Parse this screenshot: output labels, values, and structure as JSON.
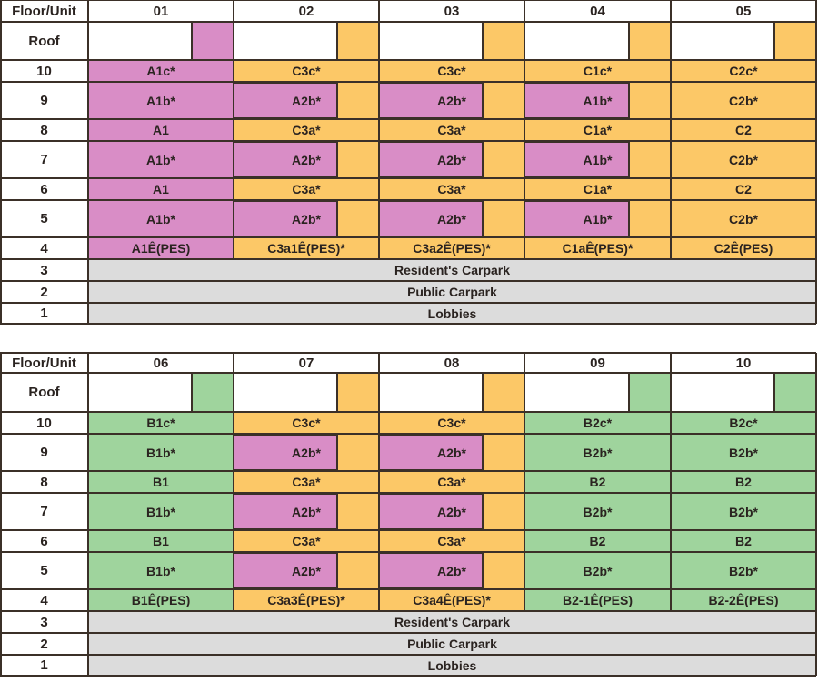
{
  "colors": {
    "pink": "#d98dc6",
    "orange": "#fcc867",
    "green": "#9fd49d",
    "gray": "#dcdcdc",
    "white": "#ffffff",
    "border": "#3b3028"
  },
  "floors": [
    "Roof",
    "10",
    "9",
    "8",
    "7",
    "6",
    "5",
    "4",
    "3",
    "2",
    "1"
  ],
  "tables": [
    {
      "header_label": "Floor/Unit",
      "units": [
        {
          "id": "01",
          "color": "pink",
          "cells": [
            {
              "label": "A1c*"
            },
            {
              "label": "A1b*"
            },
            {
              "label": "A1"
            },
            {
              "label": "A1b*"
            },
            {
              "label": "A1"
            },
            {
              "label": "A1b*"
            },
            {
              "label": "A1Ê(PES)"
            }
          ]
        },
        {
          "id": "02",
          "color": "orange",
          "cells": [
            {
              "label": "C3c*"
            },
            {
              "label": "A2b*",
              "inner": "pink"
            },
            {
              "label": "C3a*"
            },
            {
              "label": "A2b*",
              "inner": "pink"
            },
            {
              "label": "C3a*"
            },
            {
              "label": "A2b*",
              "inner": "pink"
            },
            {
              "label": "C3a1Ê(PES)*"
            }
          ]
        },
        {
          "id": "03",
          "color": "orange",
          "cells": [
            {
              "label": "C3c*"
            },
            {
              "label": "A2b*",
              "inner": "pink"
            },
            {
              "label": "C3a*"
            },
            {
              "label": "A2b*",
              "inner": "pink"
            },
            {
              "label": "C3a*"
            },
            {
              "label": "A2b*",
              "inner": "pink"
            },
            {
              "label": "C3a2Ê(PES)*"
            }
          ]
        },
        {
          "id": "04",
          "color": "orange",
          "cells": [
            {
              "label": "C1c*"
            },
            {
              "label": "A1b*",
              "inner": "pink"
            },
            {
              "label": "C1a*"
            },
            {
              "label": "A1b*",
              "inner": "pink"
            },
            {
              "label": "C1a*"
            },
            {
              "label": "A1b*",
              "inner": "pink"
            },
            {
              "label": "C1aÊ(PES)*"
            }
          ]
        },
        {
          "id": "05",
          "color": "orange",
          "cells": [
            {
              "label": "C2c*"
            },
            {
              "label": "C2b*"
            },
            {
              "label": "C2"
            },
            {
              "label": "C2b*"
            },
            {
              "label": "C2"
            },
            {
              "label": "C2b*"
            },
            {
              "label": "C2Ê(PES)"
            }
          ]
        }
      ],
      "shared_floors": [
        "Resident's Carpark",
        "Public Carpark",
        "Lobbies"
      ]
    },
    {
      "header_label": "Floor/Unit",
      "units": [
        {
          "id": "06",
          "color": "green",
          "cells": [
            {
              "label": "B1c*"
            },
            {
              "label": "B1b*"
            },
            {
              "label": "B1"
            },
            {
              "label": "B1b*"
            },
            {
              "label": "B1"
            },
            {
              "label": "B1b*"
            },
            {
              "label": "B1Ê(PES)"
            }
          ]
        },
        {
          "id": "07",
          "color": "orange",
          "cells": [
            {
              "label": "C3c*"
            },
            {
              "label": "A2b*",
              "inner": "pink"
            },
            {
              "label": "C3a*"
            },
            {
              "label": "A2b*",
              "inner": "pink"
            },
            {
              "label": "C3a*"
            },
            {
              "label": "A2b*",
              "inner": "pink"
            },
            {
              "label": "C3a3Ê(PES)*"
            }
          ]
        },
        {
          "id": "08",
          "color": "orange",
          "cells": [
            {
              "label": "C3c*"
            },
            {
              "label": "A2b*",
              "inner": "pink"
            },
            {
              "label": "C3a*"
            },
            {
              "label": "A2b*",
              "inner": "pink"
            },
            {
              "label": "C3a*"
            },
            {
              "label": "A2b*",
              "inner": "pink"
            },
            {
              "label": "C3a4Ê(PES)*"
            }
          ]
        },
        {
          "id": "09",
          "color": "green",
          "cells": [
            {
              "label": "B2c*"
            },
            {
              "label": "B2b*"
            },
            {
              "label": "B2"
            },
            {
              "label": "B2b*"
            },
            {
              "label": "B2"
            },
            {
              "label": "B2b*"
            },
            {
              "label": "B2-1Ê(PES)"
            }
          ]
        },
        {
          "id": "10",
          "color": "green",
          "cells": [
            {
              "label": "B2c*"
            },
            {
              "label": "B2b*"
            },
            {
              "label": "B2"
            },
            {
              "label": "B2b*"
            },
            {
              "label": "B2"
            },
            {
              "label": "B2b*"
            },
            {
              "label": "B2-2Ê(PES)"
            }
          ]
        }
      ],
      "shared_floors": [
        "Resident's Carpark",
        "Public Carpark",
        "Lobbies"
      ]
    }
  ]
}
